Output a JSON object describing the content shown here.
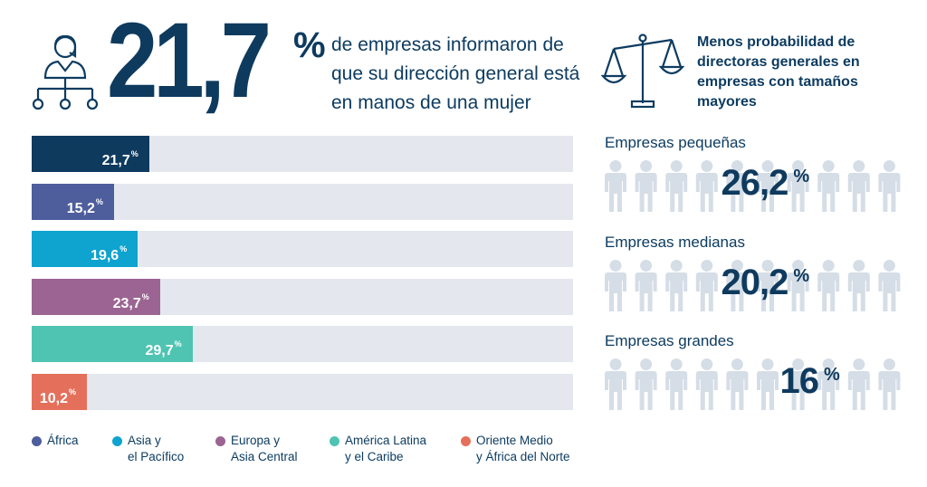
{
  "headline": {
    "value": "21,7",
    "pct_sign": "%",
    "text": "de empresas informaron de que su dirección general está en manos de una mujer"
  },
  "chart_data": [
    {
      "type": "bar",
      "orientation": "horizontal",
      "categories": [
        "África",
        "Asia y el Pacífico",
        "Europa y Asia Central",
        "América Latina y el Caribe",
        "Oriente Medio y África del Norte"
      ],
      "rows": [
        {
          "label": "21,7",
          "value": 21.7,
          "color": "#0e3a5e",
          "series": "total"
        },
        {
          "label": "15,2",
          "value": 15.2,
          "color": "#4e5d9c",
          "series": "África"
        },
        {
          "label": "19,6",
          "value": 19.6,
          "color": "#0fa3cf",
          "series": "Asia y el Pacífico"
        },
        {
          "label": "23,7",
          "value": 23.7,
          "color": "#9b6492",
          "series": "Europa y Asia Central"
        },
        {
          "label": "29,7",
          "value": 29.7,
          "color": "#4fc4b3",
          "series": "América Latina y el Caribe"
        },
        {
          "label": "10,2",
          "value": 10.2,
          "color": "#e4705c",
          "series": "Oriente Medio y África del Norte"
        }
      ],
      "xlim": [
        0,
        100
      ],
      "legend": [
        {
          "label": "África",
          "color": "#4e5d9c"
        },
        {
          "label": "Asia y\nel Pacífico",
          "color": "#0fa3cf"
        },
        {
          "label": "Europa y\nAsia Central",
          "color": "#9b6492"
        },
        {
          "label": "América Latina\ny el Caribe",
          "color": "#4fc4b3"
        },
        {
          "label": "Oriente Medio\ny África del Norte",
          "color": "#e4705c"
        }
      ],
      "legend_position": "bottom"
    },
    {
      "type": "pictogram",
      "title": "Menos probabilidad de directoras generales en empresas con tamaños mayores",
      "groups": [
        {
          "label": "Empresas pequeñas",
          "value_label": "26,2",
          "value": 26.2
        },
        {
          "label": "Empresas medianas",
          "value_label": "20,2",
          "value": 20.2
        },
        {
          "label": "Empresas grandes",
          "value_label": "16",
          "value": 16
        }
      ],
      "icons_per_row": 10,
      "pct_sign": "%",
      "filled_color": "#0e3a5e",
      "empty_color": "#d5dde6"
    }
  ]
}
